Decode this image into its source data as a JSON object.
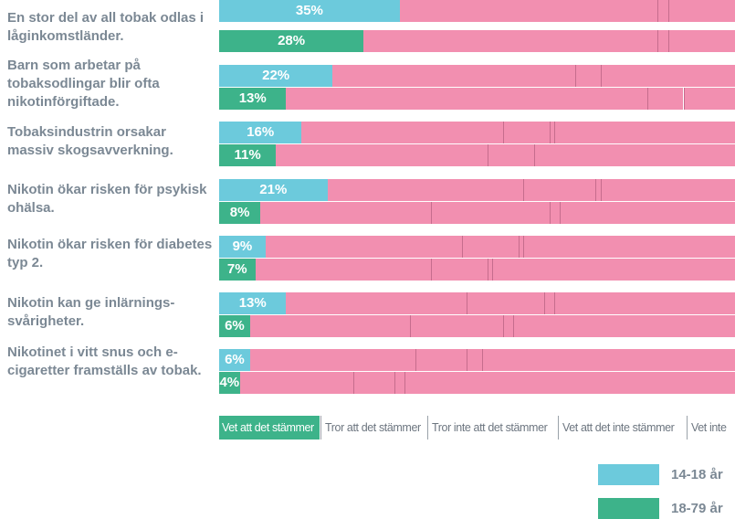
{
  "chart_data": {
    "type": "stacked-bar",
    "categories": [
      "En stor del av all tobak odlas i låginkomstländer.",
      "Barn som arbetar på tobaksodlingar blir ofta nikotinförgiftade.",
      "Tobaksindustrin orsakar massiv skogsavverkning.",
      "Nikotin ökar risken för psykisk ohälsa.",
      "Nikotin ökar risken för diabetes typ 2.",
      "Nikotin kan ge inlärnings-svårigheter.",
      "Nikotinet i vitt snus och e-cigaretter framställs av tobak."
    ],
    "answers": [
      "Vet att det stämmer",
      "Tror att det stämmer",
      "Tror inte att det stämmer",
      "Vet att det inte stämmer",
      "Vet inte"
    ],
    "answer_highlight_color": "#3db38a",
    "segment_color": "#f28fb0",
    "divider_color": "#c66d8d",
    "xlim": [
      0,
      100
    ],
    "series": [
      {
        "name": "14-18 år",
        "color": "#6ccadc",
        "values": [
          [
            35,
            50,
            2,
            0,
            13
          ],
          [
            22,
            47,
            5,
            0,
            26
          ],
          [
            16,
            39,
            9,
            1,
            35
          ],
          [
            21,
            38,
            14,
            1,
            26
          ],
          [
            9,
            38,
            11,
            1,
            41
          ],
          [
            13,
            35,
            15,
            2,
            35
          ],
          [
            6,
            32,
            10,
            3,
            49
          ]
        ],
        "value_labels": [
          "35%",
          "22%",
          "16%",
          "21%",
          "9%",
          "13%",
          "6%"
        ]
      },
      {
        "name": "18-79 år",
        "color": "#3db38a",
        "values": [
          [
            28,
            57,
            2,
            0,
            13
          ],
          [
            13,
            70,
            7,
            0,
            10
          ],
          [
            11,
            41,
            9,
            0,
            39
          ],
          [
            8,
            33,
            23,
            2,
            34
          ],
          [
            7,
            34,
            11,
            1,
            47
          ],
          [
            6,
            31,
            18,
            2,
            43
          ],
          [
            4,
            22,
            8,
            2,
            64
          ]
        ],
        "value_labels": [
          "28%",
          "13%",
          "11%",
          "8%",
          "7%",
          "6%",
          "4%"
        ]
      }
    ]
  }
}
